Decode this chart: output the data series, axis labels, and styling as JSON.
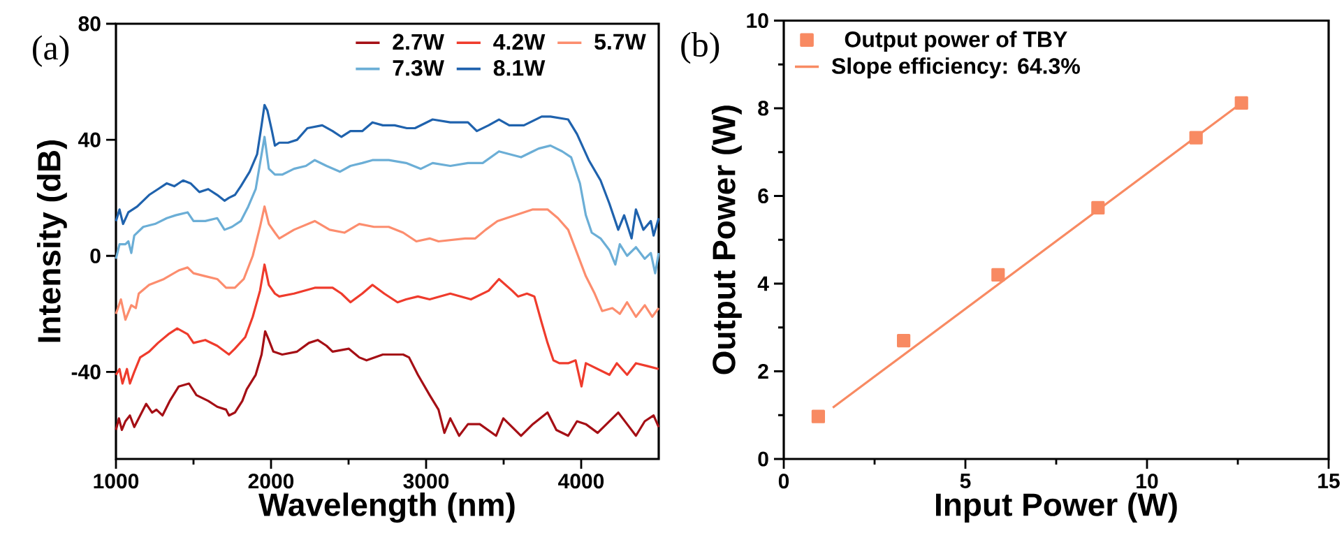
{
  "chart_data": [
    {
      "type": "line",
      "xlabel": "Wavelength (nm)",
      "ylabel": "Intensity (dB)",
      "xlim": [
        1000,
        4500
      ],
      "ylim": [
        -70,
        80
      ],
      "xticks": [
        1000,
        2000,
        3000,
        4000
      ],
      "yticks": [
        -40,
        0,
        40,
        80
      ],
      "legend": "top right",
      "line_style": "solid",
      "annotations": [
        "(a)"
      ],
      "series": [
        {
          "name": "2.7W",
          "color": "#a50f15",
          "x": [
            1000,
            1019,
            1038,
            1061,
            1090,
            1118,
            1166,
            1195,
            1233,
            1261,
            1300,
            1347,
            1405,
            1471,
            1519,
            1595,
            1653,
            1710,
            1729,
            1767,
            1815,
            1843,
            1901,
            1939,
            1962,
            1986,
            2015,
            2072,
            2168,
            2244,
            2301,
            2358,
            2397,
            2502,
            2569,
            2616,
            2721,
            2816,
            2852,
            2890,
            2947,
            3023,
            3080,
            3118,
            3156,
            3213,
            3270,
            3346,
            3451,
            3498,
            3612,
            3688,
            3783,
            3840,
            3916,
            3973,
            4030,
            4106,
            4239,
            4296,
            4353,
            4410,
            4467,
            4500
          ],
          "values": [
            -60,
            -56,
            -60,
            -57,
            -55,
            -59,
            -54,
            -51,
            -54,
            -53,
            -55,
            -50,
            -45,
            -44,
            -48,
            -50,
            -52,
            -53,
            -55,
            -54,
            -50,
            -46,
            -41,
            -34,
            -26,
            -29,
            -33,
            -34,
            -33,
            -30,
            -29,
            -31,
            -33,
            -32,
            -35,
            -36,
            -34,
            -34,
            -34,
            -35,
            -41,
            -48,
            -53,
            -61,
            -56,
            -62,
            -58,
            -58,
            -62,
            -56,
            -62,
            -58,
            -54,
            -60,
            -62,
            -57,
            -58,
            -61,
            -54,
            -58,
            -62,
            -57,
            -55,
            -59
          ]
        },
        {
          "name": "4.2W",
          "color": "#ef3b2c",
          "x": [
            1000,
            1023,
            1042,
            1071,
            1090,
            1118,
            1156,
            1214,
            1271,
            1338,
            1395,
            1462,
            1500,
            1576,
            1653,
            1729,
            1767,
            1834,
            1882,
            1929,
            1958,
            1986,
            2025,
            2053,
            2148,
            2282,
            2397,
            2454,
            2512,
            2588,
            2654,
            2730,
            2816,
            2871,
            2947,
            3023,
            3156,
            3289,
            3403,
            3470,
            3555,
            3593,
            3650,
            3698,
            3745,
            3783,
            3821,
            3859,
            3916,
            3964,
            4002,
            4030,
            4106,
            4182,
            4230,
            4296,
            4353,
            4429,
            4500
          ],
          "values": [
            -41,
            -39,
            -44,
            -39,
            -44,
            -40,
            -35,
            -33,
            -30,
            -27,
            -25,
            -27,
            -30,
            -29,
            -31,
            -34,
            -32,
            -28,
            -21,
            -12,
            -3,
            -10,
            -13,
            -14,
            -13,
            -11,
            -11,
            -13,
            -16,
            -13,
            -10,
            -13,
            -16,
            -15,
            -14,
            -15,
            -13,
            -15,
            -12,
            -8,
            -12,
            -14,
            -13,
            -14,
            -23,
            -30,
            -36,
            -37,
            -37,
            -36,
            -45,
            -37,
            -39,
            -41,
            -37,
            -41,
            -37,
            -38,
            -39
          ]
        },
        {
          "name": "5.7W",
          "color": "#fc8d6e",
          "x": [
            1000,
            1032,
            1061,
            1099,
            1128,
            1147,
            1214,
            1309,
            1405,
            1462,
            1500,
            1576,
            1653,
            1710,
            1767,
            1824,
            1882,
            1929,
            1958,
            1986,
            2025,
            2053,
            2148,
            2282,
            2378,
            2473,
            2569,
            2664,
            2759,
            2852,
            2937,
            3023,
            3080,
            3251,
            3317,
            3384,
            3460,
            3574,
            3688,
            3783,
            3850,
            3916,
            3973,
            4030,
            4087,
            4135,
            4201,
            4249,
            4296,
            4353,
            4410,
            4458,
            4500
          ],
          "values": [
            -20,
            -15,
            -22,
            -17,
            -18,
            -13,
            -10,
            -8,
            -5,
            -4,
            -6,
            -7,
            -8,
            -11,
            -11,
            -8,
            0,
            10,
            17,
            11,
            8,
            6,
            9,
            12,
            9,
            8,
            11,
            10,
            10,
            8,
            5,
            6,
            5,
            6,
            6,
            9,
            12,
            14,
            16,
            16,
            13,
            9,
            1,
            -7,
            -13,
            -19,
            -18,
            -20,
            -16,
            -21,
            -17,
            -21,
            -18
          ]
        },
        {
          "name": "7.3W",
          "color": "#6baed6",
          "x": [
            1000,
            1023,
            1061,
            1080,
            1099,
            1118,
            1176,
            1252,
            1328,
            1385,
            1462,
            1500,
            1576,
            1653,
            1700,
            1748,
            1805,
            1853,
            1901,
            1939,
            1958,
            1986,
            2025,
            2072,
            2148,
            2225,
            2282,
            2358,
            2444,
            2512,
            2588,
            2654,
            2759,
            2871,
            2966,
            3042,
            3156,
            3270,
            3365,
            3470,
            3612,
            3726,
            3802,
            3878,
            3935,
            3992,
            4030,
            4068,
            4125,
            4182,
            4220,
            4249,
            4296,
            4353,
            4410,
            4449,
            4477,
            4500
          ],
          "values": [
            -1,
            4,
            4,
            5,
            1,
            7,
            10,
            11,
            13,
            14,
            15,
            12,
            12,
            13,
            9,
            10,
            12,
            17,
            23,
            35,
            41,
            30,
            28,
            28,
            30,
            31,
            33,
            31,
            29,
            31,
            32,
            33,
            33,
            32,
            30,
            32,
            31,
            32,
            32,
            36,
            34,
            37,
            38,
            36,
            34,
            25,
            14,
            8,
            6,
            2,
            -3,
            4,
            0,
            3,
            -1,
            1,
            -6,
            1
          ]
        },
        {
          "name": "8.1W",
          "color": "#1f62ad",
          "x": [
            1000,
            1023,
            1046,
            1080,
            1137,
            1214,
            1271,
            1328,
            1376,
            1433,
            1481,
            1538,
            1595,
            1653,
            1700,
            1729,
            1767,
            1805,
            1862,
            1910,
            1939,
            1958,
            1977,
            2006,
            2025,
            2053,
            2110,
            2168,
            2234,
            2330,
            2397,
            2454,
            2512,
            2588,
            2654,
            2721,
            2797,
            2876,
            2928,
            3042,
            3156,
            3270,
            3327,
            3403,
            3470,
            3536,
            3631,
            3745,
            3802,
            3916,
            3973,
            4049,
            4125,
            4182,
            4239,
            4277,
            4325,
            4353,
            4401,
            4449,
            4467,
            4500
          ],
          "values": [
            12,
            16,
            11,
            15,
            17,
            21,
            23,
            25,
            24,
            26,
            25,
            22,
            23,
            21,
            19,
            20,
            21,
            24,
            29,
            35,
            45,
            52,
            50,
            43,
            38,
            39,
            39,
            40,
            44,
            45,
            43,
            41,
            43,
            43,
            46,
            45,
            45,
            44,
            44,
            47,
            46,
            46,
            43,
            45,
            47,
            45,
            45,
            48,
            48,
            47,
            42,
            33,
            26,
            18,
            9,
            14,
            6,
            16,
            9,
            12,
            7,
            13
          ]
        }
      ]
    },
    {
      "type": "scatter",
      "xlabel": "Input Power (W)",
      "ylabel": "Output Power (W)",
      "xlim": [
        0,
        15
      ],
      "ylim": [
        0,
        10
      ],
      "xticks": [
        0,
        5,
        10,
        15
      ],
      "yticks": [
        0,
        2,
        4,
        6,
        8,
        10
      ],
      "legend": "top left",
      "annotations": [
        "(b)"
      ],
      "series": [
        {
          "name": "Output power of TBY",
          "color": "#f88a62",
          "marker": "square",
          "x": [
            0.95,
            3.3,
            5.9,
            8.65,
            11.35,
            12.6
          ],
          "values": [
            0.97,
            2.7,
            4.2,
            5.73,
            7.33,
            8.12
          ]
        },
        {
          "name": "Slope efficiency: 64.3%",
          "type": "line",
          "color": "#f88a62",
          "x": [
            1.35,
            12.6
          ],
          "values": [
            1.17,
            8.12
          ]
        }
      ]
    }
  ]
}
